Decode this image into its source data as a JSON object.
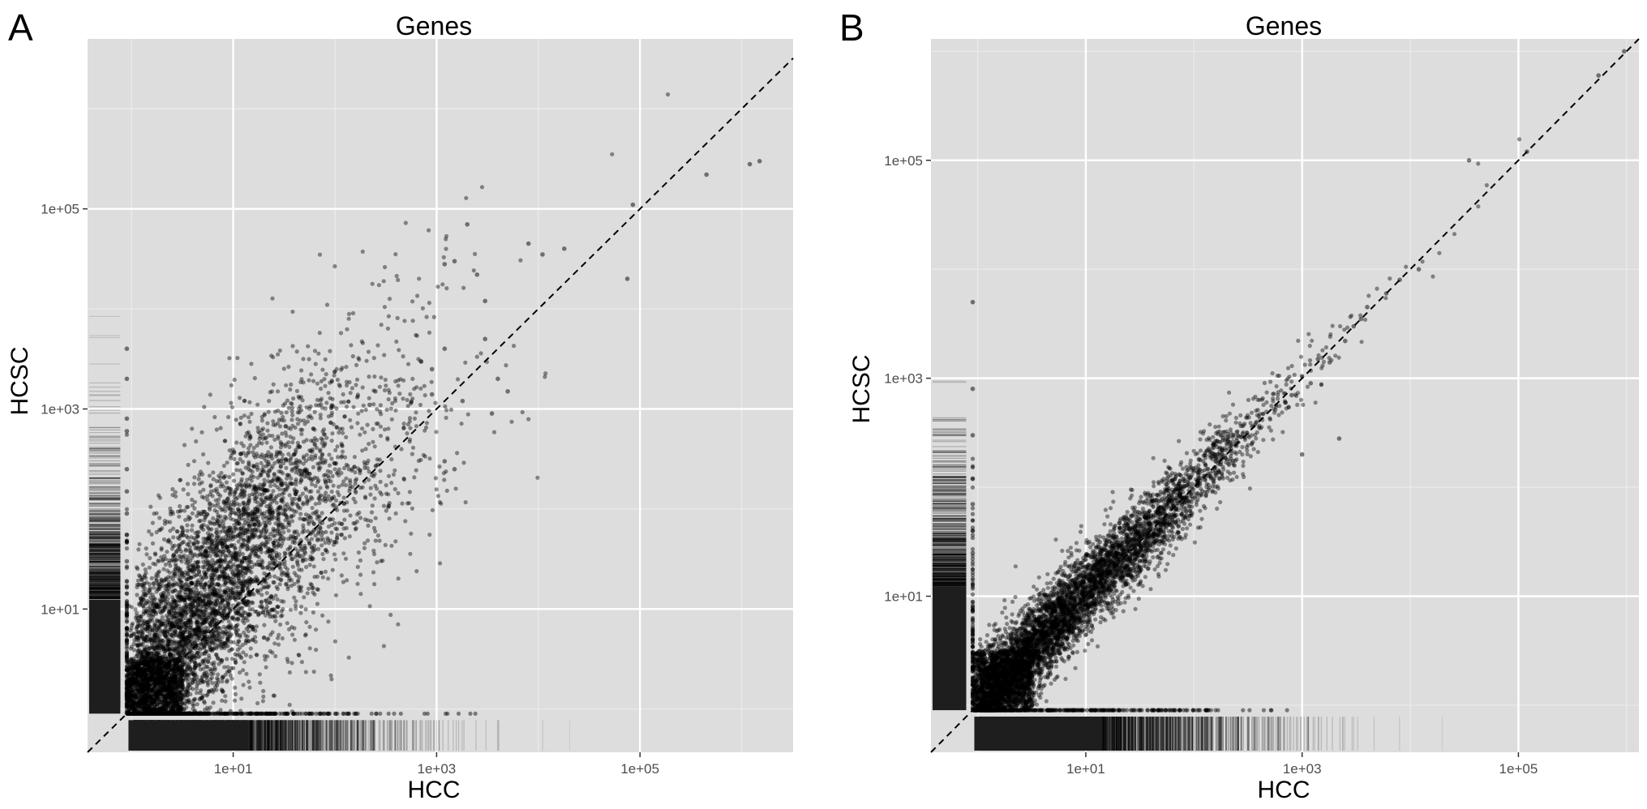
{
  "chart_data": [
    {
      "panel": "A",
      "type": "scatter",
      "title": "Genes",
      "xlabel": "HCC",
      "ylabel": "HCSC",
      "x_scale": "log10",
      "y_scale": "log10",
      "xlim": [
        0.37,
        3200000
      ],
      "ylim": [
        0.37,
        5000000
      ],
      "x_ticks": [
        10,
        1000,
        100000
      ],
      "x_tick_labels": [
        "1e+01",
        "1e+03",
        "1e+05"
      ],
      "y_ticks": [
        10,
        1000,
        100000
      ],
      "y_tick_labels": [
        "1e+01",
        "1e+03",
        "1e+05"
      ],
      "grid": true,
      "reference_line": "y = x (dashed)",
      "rug": "both axes",
      "background": "#dddddd",
      "point_color": "#000000",
      "outlier_points": {
        "x": [
          1500000,
          1200000,
          450000,
          85000,
          75000,
          2000,
          1500,
          1200,
          2500,
          3000,
          8000,
          11000,
          18000,
          700,
          900,
          1200,
          4000,
          5000,
          900,
          1800,
          3500,
          3000,
          250,
          220,
          1200,
          1500
        ],
        "y": [
          300000,
          280000,
          220000,
          110000,
          20000,
          70000,
          30000,
          28000,
          22000,
          12000,
          45000,
          35000,
          40000,
          3000,
          2500,
          4000,
          2000,
          1500,
          1400,
          1200,
          900,
          5000,
          1500,
          1100,
          300,
          250
        ]
      },
      "x_floor_points": [
        0.9,
        0.9,
        0.9,
        0.9,
        0.9,
        0.9,
        0.9,
        0.9,
        0.9
      ],
      "y_floor_values": [
        4000,
        2000,
        800,
        600,
        250,
        150,
        90,
        55,
        30
      ]
    },
    {
      "panel": "B",
      "type": "scatter",
      "title": "Genes",
      "xlabel": "HCC",
      "ylabel": "HCSC",
      "x_scale": "log10",
      "y_scale": "log10",
      "xlim": [
        0.37,
        1300000
      ],
      "ylim": [
        0.37,
        1300000
      ],
      "x_ticks": [
        10,
        1000,
        100000
      ],
      "x_tick_labels": [
        "1e+01",
        "1e+03",
        "1e+05"
      ],
      "y_ticks": [
        10,
        1000,
        100000
      ],
      "y_tick_labels": [
        "1e+01",
        "1e+03",
        "1e+05"
      ],
      "grid": true,
      "reference_line": "y = x (dashed)",
      "rug": "both axes",
      "background": "#dddddd",
      "point_color": "#000000",
      "outlier_points": {
        "x": [
          950000,
          550000,
          120000,
          35000,
          12000,
          8000,
          6000,
          4000,
          3500,
          3000,
          2500,
          1800,
          1400,
          1200,
          800,
          700,
          1000,
          2200
        ],
        "y": [
          1000000,
          600000,
          120000,
          100000,
          10000,
          8000,
          6000,
          4500,
          3500,
          3000,
          2200,
          1400,
          1500,
          900,
          700,
          600,
          200,
          280
        ]
      },
      "x_floor_points": [
        0.9,
        0.9,
        0.9,
        0.9,
        0.9,
        0.9,
        0.9
      ],
      "y_floor_values": [
        5000,
        800,
        300,
        120,
        70,
        40,
        25
      ]
    }
  ]
}
